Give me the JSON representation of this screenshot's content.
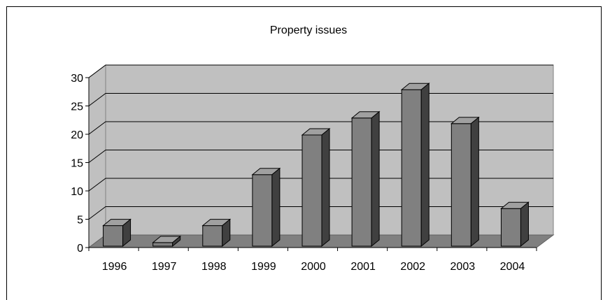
{
  "chart_data": {
    "type": "bar",
    "title": "Property issues",
    "xlabel": "",
    "ylabel": "",
    "categories": [
      "1996",
      "1997",
      "1998",
      "1999",
      "2000",
      "2001",
      "2002",
      "2003",
      "2004"
    ],
    "values": [
      4,
      1,
      4,
      13,
      20,
      23,
      28,
      22,
      7
    ],
    "ylim": [
      0,
      30
    ],
    "yticks": [
      0,
      5,
      10,
      15,
      20,
      25,
      30
    ],
    "grid": true,
    "legend": "none",
    "style": "3d-column",
    "colors": {
      "wall": "#c0c0c0",
      "floor": "#808080",
      "bar_front": "#808080",
      "bar_top": "#a0a0a0",
      "bar_side": "#404040",
      "grid": "#000000"
    }
  }
}
